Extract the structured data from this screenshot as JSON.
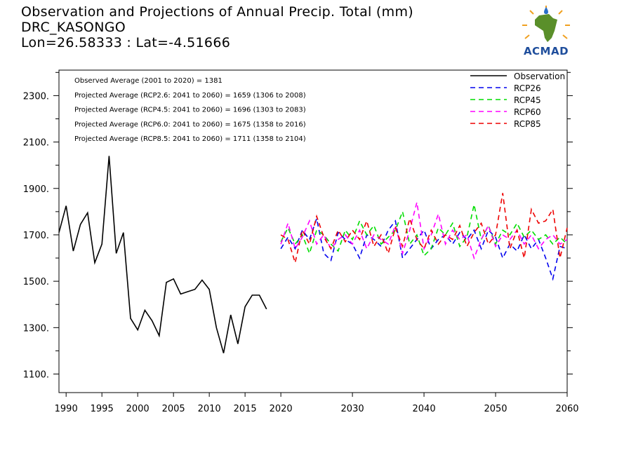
{
  "header": {
    "title_line1": "Observation and Projections of Annual Precip. Total (mm)",
    "title_line2": "DRC_KASONGO",
    "title_line3": "Lon=26.58333 : Lat=-4.51666"
  },
  "logo": {
    "text": "ACMAD",
    "colors": {
      "africa": "#5a8f2a",
      "sun": "#f0a020",
      "drop": "#2a6fc9",
      "text": "#1f4e9c"
    }
  },
  "annotations": [
    "Observed Average (2001 to 2020) = 1381",
    "Projected Average (RCP2.6: 2041 to 2060) = 1659 (1306 to 2008)",
    "Projected Average (RCP4.5: 2041 to 2060) = 1696 (1303 to 2083)",
    "Projected Average (RCP6.0: 2041 to 2060) = 1675 (1358 to 2016)",
    "Projected Average (RCP8.5: 2041 to 2060) = 1711 (1358 to 2104)"
  ],
  "chart_data": {
    "type": "line",
    "xlim": [
      1989,
      2060
    ],
    "ylim": [
      1020,
      2410
    ],
    "x_ticks": [
      1990,
      1995,
      2000,
      2005,
      2010,
      2015,
      2020,
      2030,
      2040,
      2050,
      2060
    ],
    "x_tick_labels": [
      "1990",
      "1995",
      "2000",
      "2005",
      "2010",
      "2015",
      "2020",
      "2030",
      "2040",
      "2050",
      "2060"
    ],
    "y_ticks": [
      1100,
      1300,
      1500,
      1700,
      1900,
      2100,
      2300
    ],
    "y_tick_labels": [
      "1100.",
      "1300.",
      "1500.",
      "1700.",
      "1900.",
      "2100.",
      "2300."
    ],
    "legend_position": "top-right",
    "series": [
      {
        "name": "Observation",
        "color": "#000000",
        "dash": "solid",
        "x": [
          1989,
          1990,
          1991,
          1992,
          1993,
          1994,
          1995,
          1996,
          1997,
          1998,
          1999,
          2000,
          2001,
          2002,
          2003,
          2004,
          2005,
          2006,
          2007,
          2008,
          2009,
          2010,
          2011,
          2012,
          2013,
          2014,
          2015,
          2016,
          2017,
          2018,
          2019,
          2020
        ],
        "values": [
          1710,
          1825,
          1630,
          1745,
          1795,
          1580,
          1660,
          2040,
          1620,
          1710,
          1340,
          1290,
          1375,
          1330,
          1265,
          1495,
          1510,
          1445,
          1455,
          1465,
          1505,
          1465,
          1300,
          1190,
          1355,
          1230,
          1390,
          1440,
          1440,
          1380,
          null,
          null
        ]
      },
      {
        "name": "RCP26",
        "color": "#0000ee",
        "dash": "dashed",
        "x": [
          2020,
          2021,
          2022,
          2023,
          2024,
          2025,
          2026,
          2027,
          2028,
          2029,
          2030,
          2031,
          2032,
          2033,
          2034,
          2035,
          2036,
          2037,
          2038,
          2039,
          2040,
          2041,
          2042,
          2043,
          2044,
          2045,
          2046,
          2047,
          2048,
          2049,
          2050,
          2051,
          2052,
          2053,
          2054,
          2055,
          2056,
          2057,
          2058,
          2059,
          2060
        ],
        "values": [
          1640,
          1690,
          1640,
          1720,
          1680,
          1770,
          1620,
          1590,
          1710,
          1680,
          1660,
          1600,
          1700,
          1680,
          1650,
          1720,
          1760,
          1600,
          1640,
          1680,
          1720,
          1640,
          1680,
          1700,
          1660,
          1710,
          1680,
          1720,
          1640,
          1720,
          1690,
          1600,
          1660,
          1630,
          1700,
          1640,
          1680,
          1600,
          1510,
          1650,
          1640
        ]
      },
      {
        "name": "RCP45",
        "color": "#00dd00",
        "dash": "dashed",
        "x": [
          2020,
          2021,
          2022,
          2023,
          2024,
          2025,
          2026,
          2027,
          2028,
          2029,
          2030,
          2031,
          2032,
          2033,
          2034,
          2035,
          2036,
          2037,
          2038,
          2039,
          2040,
          2041,
          2042,
          2043,
          2044,
          2045,
          2046,
          2047,
          2048,
          2049,
          2050,
          2051,
          2052,
          2053,
          2054,
          2055,
          2056,
          2057,
          2058,
          2059,
          2060
        ],
        "values": [
          1670,
          1730,
          1660,
          1700,
          1620,
          1720,
          1700,
          1660,
          1630,
          1720,
          1680,
          1760,
          1700,
          1740,
          1660,
          1690,
          1720,
          1800,
          1660,
          1700,
          1610,
          1640,
          1730,
          1700,
          1750,
          1650,
          1690,
          1830,
          1680,
          1740,
          1660,
          1720,
          1700,
          1750,
          1690,
          1720,
          1680,
          1700,
          1660,
          1690,
          1660
        ]
      },
      {
        "name": "RCP60",
        "color": "#ff00ff",
        "dash": "dashed",
        "x": [
          2020,
          2021,
          2022,
          2023,
          2024,
          2025,
          2026,
          2027,
          2028,
          2029,
          2030,
          2031,
          2032,
          2033,
          2034,
          2035,
          2036,
          2037,
          2038,
          2039,
          2040,
          2041,
          2042,
          2043,
          2044,
          2045,
          2046,
          2047,
          2048,
          2049,
          2050,
          2051,
          2052,
          2053,
          2054,
          2055,
          2056,
          2057,
          2058,
          2059,
          2060
        ],
        "values": [
          1660,
          1750,
          1640,
          1690,
          1760,
          1660,
          1700,
          1640,
          1680,
          1700,
          1660,
          1720,
          1640,
          1700,
          1680,
          1660,
          1740,
          1620,
          1720,
          1840,
          1640,
          1700,
          1790,
          1660,
          1720,
          1680,
          1700,
          1600,
          1680,
          1740,
          1650,
          1700,
          1680,
          1720,
          1660,
          1700,
          1640,
          1680,
          1700,
          1660,
          1680
        ]
      },
      {
        "name": "RCP85",
        "color": "#ee0000",
        "dash": "dashed",
        "x": [
          2020,
          2021,
          2022,
          2023,
          2024,
          2025,
          2026,
          2027,
          2028,
          2029,
          2030,
          2031,
          2032,
          2033,
          2034,
          2035,
          2036,
          2037,
          2038,
          2039,
          2040,
          2041,
          2042,
          2043,
          2044,
          2045,
          2046,
          2047,
          2048,
          2049,
          2050,
          2051,
          2052,
          2053,
          2054,
          2055,
          2056,
          2057,
          2058,
          2059,
          2060
        ],
        "values": [
          1700,
          1680,
          1580,
          1720,
          1660,
          1780,
          1690,
          1640,
          1720,
          1670,
          1720,
          1680,
          1760,
          1650,
          1700,
          1620,
          1730,
          1650,
          1770,
          1680,
          1640,
          1720,
          1660,
          1700,
          1680,
          1740,
          1650,
          1710,
          1750,
          1660,
          1700,
          1880,
          1640,
          1720,
          1600,
          1810,
          1750,
          1760,
          1810,
          1600,
          1730
        ]
      }
    ]
  }
}
